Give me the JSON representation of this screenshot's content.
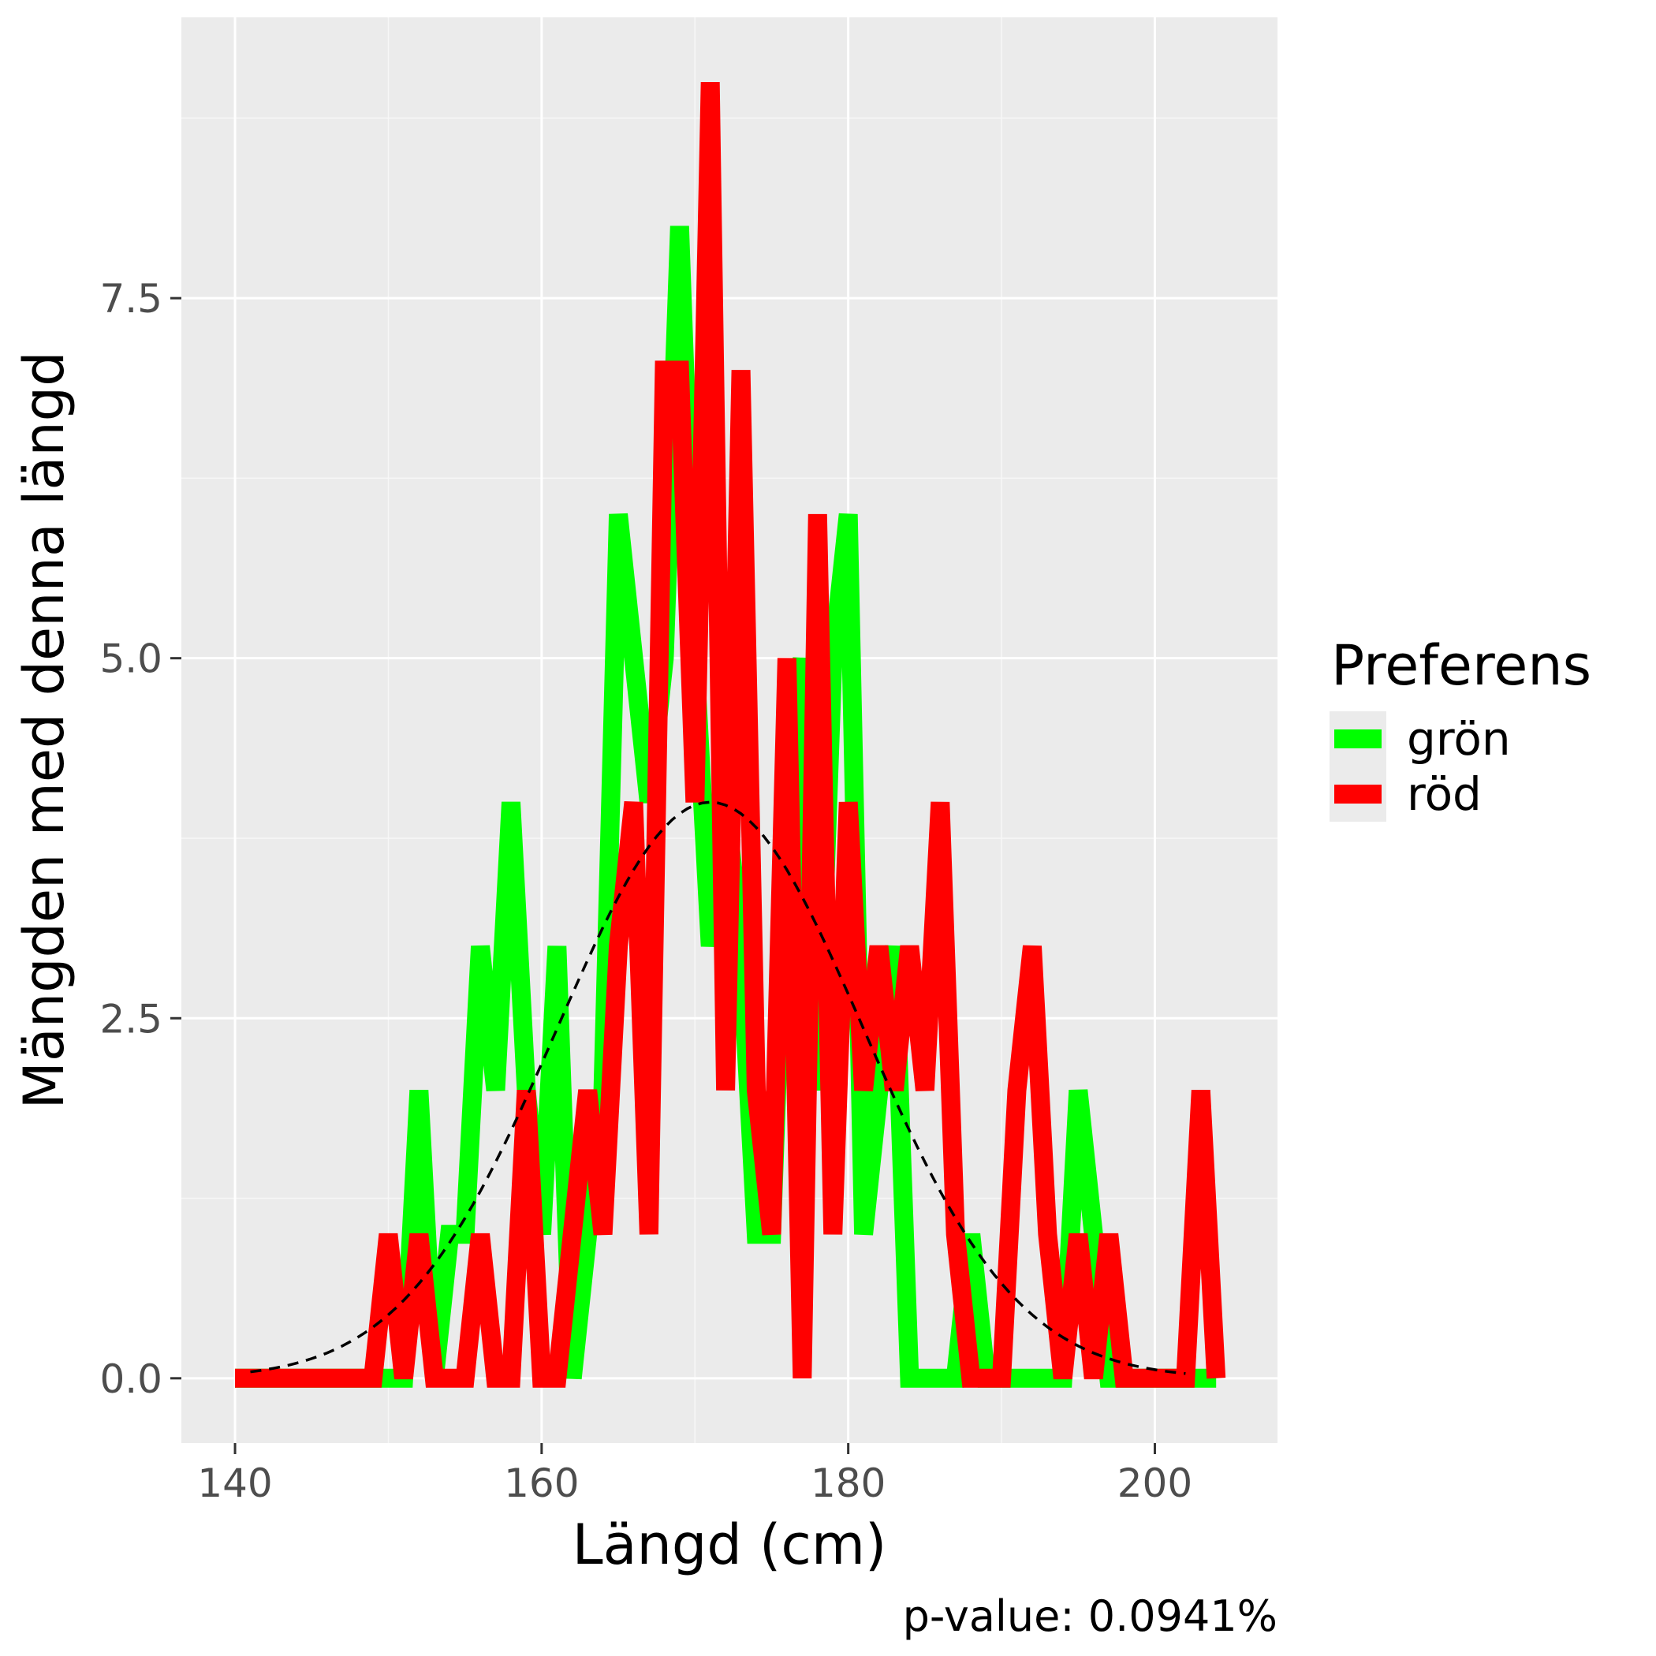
{
  "chart_data": {
    "type": "line",
    "xlabel": "Längd (cm)",
    "ylabel": "Mängden med denna längd",
    "caption": "p-value: 0.0941%",
    "xlim": [
      136.5,
      208
    ],
    "ylim": [
      -0.45,
      9.45
    ],
    "x_ticks": [
      140,
      160,
      180,
      200
    ],
    "x_tick_labels": [
      "140",
      "160",
      "180",
      "200"
    ],
    "y_ticks": [
      0,
      2.5,
      5,
      7.5
    ],
    "y_tick_labels": [
      "0.0",
      "2.5",
      "5.0",
      "7.5"
    ],
    "grid": true,
    "legend": {
      "title": "Preferens",
      "position": "right",
      "entries": [
        {
          "label": "grön",
          "color": "#00ff00"
        },
        {
          "label": "röd",
          "color": "#ff0000"
        }
      ]
    },
    "series": [
      {
        "name": "grön",
        "color": "#00ff00",
        "x": [
          140,
          141,
          142,
          143,
          144,
          145,
          146,
          147,
          148,
          149,
          150,
          151,
          152,
          153,
          154,
          155,
          156,
          157,
          158,
          159,
          160,
          161,
          162,
          163,
          164,
          165,
          166,
          167,
          168,
          169,
          170,
          171,
          172,
          173,
          174,
          175,
          176,
          177,
          178,
          179,
          180,
          181,
          182,
          183,
          184,
          185,
          186,
          187,
          188,
          189,
          190,
          191,
          192,
          193,
          194,
          195,
          196,
          197,
          198,
          199,
          200,
          201,
          202,
          203,
          204
        ],
        "values": [
          0,
          0,
          0,
          0,
          0,
          0,
          0,
          0,
          0,
          0,
          0,
          0,
          2,
          0,
          1,
          1,
          3,
          2,
          4,
          2,
          1,
          3,
          0,
          1,
          2,
          6,
          5,
          4,
          5,
          8,
          5,
          3,
          4,
          3,
          1,
          1,
          4,
          5,
          2,
          5,
          6,
          1,
          2,
          3,
          0,
          0,
          0,
          0,
          1,
          0,
          0,
          0,
          0,
          0,
          0,
          2,
          1,
          0,
          0,
          0,
          0,
          0,
          0,
          0,
          0
        ]
      },
      {
        "name": "röd",
        "color": "#ff0000",
        "x": [
          140,
          141,
          142,
          143,
          144,
          145,
          146,
          147,
          148,
          149,
          150,
          151,
          152,
          153,
          154,
          155,
          156,
          157,
          158,
          159,
          160,
          161,
          162,
          163,
          164,
          165,
          166,
          167,
          168,
          169,
          170,
          171,
          172,
          173,
          174,
          175,
          176,
          177,
          178,
          179,
          180,
          181,
          182,
          183,
          184,
          185,
          186,
          187,
          188,
          189,
          190,
          191,
          192,
          193,
          194,
          195,
          196,
          197,
          198,
          199,
          200,
          201,
          202,
          203,
          204
        ],
        "values": [
          0,
          0,
          0,
          0,
          0,
          0,
          0,
          0,
          0,
          0,
          1,
          0,
          1,
          0,
          0,
          0,
          1,
          0,
          0,
          2,
          0,
          0,
          1,
          2,
          1,
          3,
          4,
          1,
          7,
          7,
          4,
          9,
          2,
          7,
          2,
          1,
          5,
          0,
          6,
          1,
          4,
          2,
          3,
          2,
          3,
          2,
          4,
          1,
          0,
          0,
          0,
          2,
          3,
          1,
          0,
          1,
          0,
          1,
          0,
          0,
          0,
          0,
          0,
          2,
          0
        ]
      },
      {
        "name": "",
        "style": "dashed",
        "color": "#000000",
        "mean": 171,
        "sd": 10,
        "peak": 4.0,
        "x_range": [
          141,
          202
        ]
      }
    ]
  },
  "colors": {
    "panel_background": "#ebebeb",
    "grid_major": "#ffffff",
    "grid_minor": "#f7f7f7",
    "tick_text": "#4d4d4d",
    "legend_key_background": "#ebebeb"
  }
}
